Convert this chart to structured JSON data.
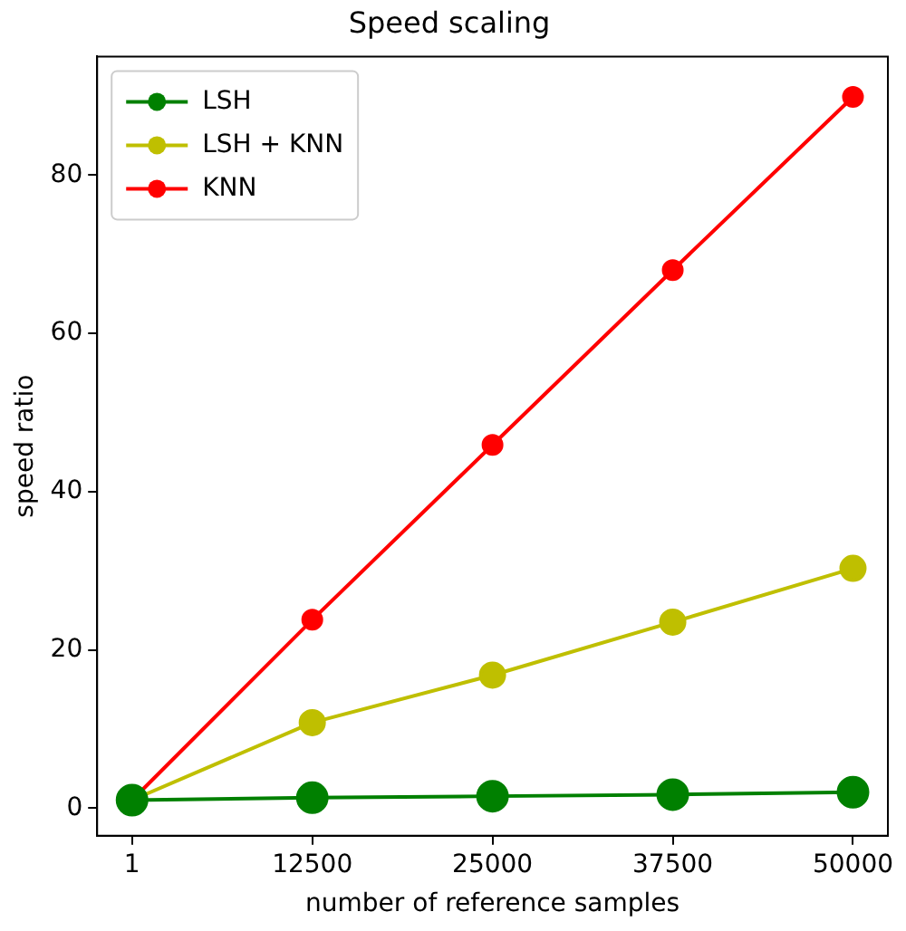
{
  "chart_data": {
    "type": "line",
    "title": "Speed scaling",
    "xlabel": "number of reference samples",
    "ylabel": "speed ratio",
    "x": [
      1,
      12500,
      25000,
      37500,
      50000
    ],
    "series": [
      {
        "name": "LSH",
        "color": "#008000",
        "values": [
          1,
          1.3,
          1.5,
          1.7,
          2.0
        ]
      },
      {
        "name": "LSH + KNN",
        "color": "#bfbf00",
        "values": [
          1,
          10.8,
          16.8,
          23.5,
          30.3
        ]
      },
      {
        "name": "KNN",
        "color": "#ff0000",
        "values": [
          1,
          23.8,
          45.9,
          68.0,
          89.9
        ]
      }
    ],
    "xlim": [
      -2420,
      52420
    ],
    "xticks": [
      1,
      12500,
      25000,
      37500,
      50000
    ],
    "ylim": [
      -3.5,
      95
    ],
    "yticks": [
      0,
      20,
      40,
      60,
      80
    ],
    "grid": false,
    "legend": "top left",
    "marker": "circle",
    "line_style": "solid"
  }
}
